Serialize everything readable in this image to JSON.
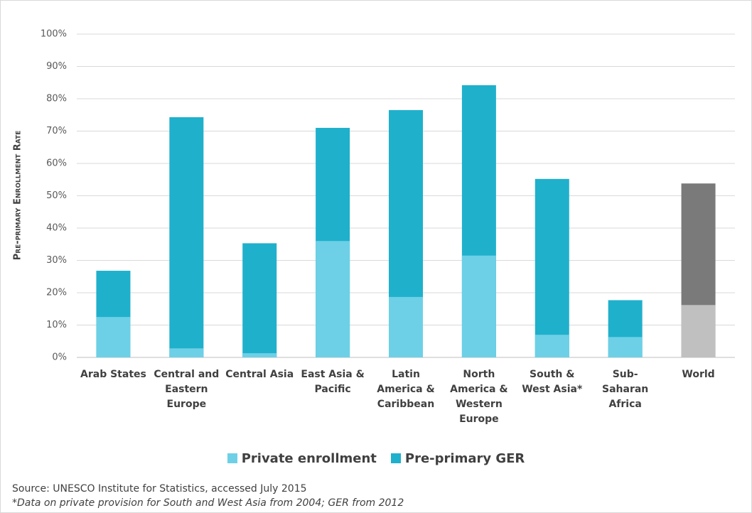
{
  "chart_data": {
    "type": "bar",
    "y_label": "Pre-primary Enrollment Rate",
    "categories": [
      "Arab States",
      "Central and Eastern Europe",
      "Central Asia",
      "East Asia & Pacific",
      "Latin America & Caribbean",
      "North America & Western Europe",
      "South & West Asia*",
      "Sub-Saharan Africa",
      "World"
    ],
    "series": [
      {
        "name": "Pre-primary GER",
        "color": "#1fb0cc",
        "colors": [
          "#1fb0cc",
          "#1fb0cc",
          "#1fb0cc",
          "#1fb0cc",
          "#1fb0cc",
          "#1fb0cc",
          "#1fb0cc",
          "#1fb0cc",
          "#7a7a7a"
        ],
        "values": [
          26.8,
          74.3,
          35.3,
          71,
          76.5,
          84.2,
          55.2,
          17.7,
          53.8
        ]
      },
      {
        "name": "Private enrollment",
        "color": "#6dd0e6",
        "colors": [
          "#6dd0e6",
          "#6dd0e6",
          "#6dd0e6",
          "#6dd0e6",
          "#6dd0e6",
          "#6dd0e6",
          "#6dd0e6",
          "#6dd0e6",
          "#c0c0c0"
        ],
        "values": [
          12.5,
          2.8,
          1.3,
          36,
          18.7,
          31.5,
          7,
          6.3,
          16.2
        ]
      }
    ],
    "legend_order": [
      1,
      0
    ],
    "ylim": [
      0,
      100
    ],
    "yticks": [
      {
        "value": 0,
        "label": "0%"
      },
      {
        "value": 10,
        "label": "10%"
      },
      {
        "value": 20,
        "label": "20%"
      },
      {
        "value": 30,
        "label": "30%"
      },
      {
        "value": 40,
        "label": "40%"
      },
      {
        "value": 50,
        "label": "50%"
      },
      {
        "value": 60,
        "label": "60%"
      },
      {
        "value": 70,
        "label": "70%"
      },
      {
        "value": 80,
        "label": "80%"
      },
      {
        "value": 90,
        "label": "90%"
      },
      {
        "value": 100,
        "label": "100%"
      }
    ],
    "grid": true,
    "source": "Source: UNESCO Institute for Statistics, accessed July 2015",
    "note": "*Data on private provision for South and West Asia from 2004; GER from 2012"
  }
}
